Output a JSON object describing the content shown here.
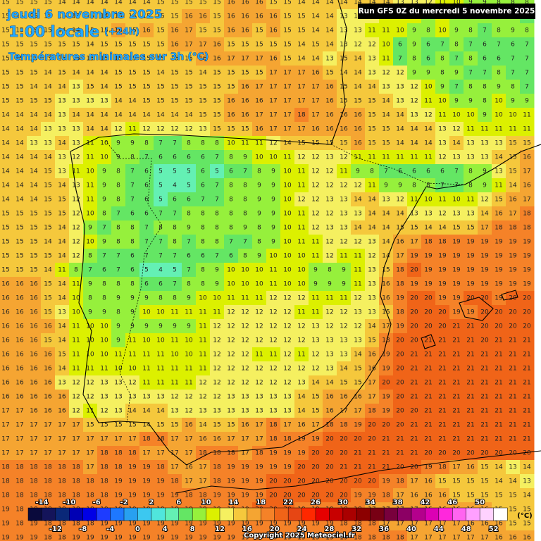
{
  "header": {
    "date": "jeudi 6 novembre 2025",
    "time": "1:00 locale",
    "lead": "(+24h)",
    "subtitle": "Températures minimales sur 3h (°C)",
    "run": "Run GFS 0Z du mercredi 5 novembre 2025"
  },
  "colorbar": {
    "unit": "(°C)",
    "labels": [
      -14,
      -12,
      -10,
      -8,
      -6,
      -4,
      -2,
      0,
      2,
      4,
      6,
      8,
      10,
      12,
      14,
      16,
      18,
      20,
      22,
      24,
      26,
      28,
      30,
      32,
      34,
      36,
      38,
      40,
      42,
      44,
      46,
      48,
      50,
      52
    ],
    "colors": [
      "#0a0a3c",
      "#14145a",
      "#0a2878",
      "#0000b4",
      "#0000e6",
      "#1e3cff",
      "#1e78ff",
      "#28a0f0",
      "#3cc8f0",
      "#50e6dc",
      "#64f0b4",
      "#64e664",
      "#96f03c",
      "#dcf000",
      "#f5f060",
      "#f5c83c",
      "#f5a532",
      "#f58228",
      "#f06418",
      "#e64614",
      "#ff2800",
      "#e60000",
      "#c80000",
      "#aa0000",
      "#8c0000",
      "#780014",
      "#78003c",
      "#8c0064",
      "#b4008c",
      "#dc00b4",
      "#ff28dc",
      "#ff64f0",
      "#ffa0ff",
      "#ffd2ff",
      "#ffffff"
    ]
  },
  "copyright": "Copyright 2025 Meteociel.fr",
  "grid": {
    "rows": [
      [
        15,
        15,
        15,
        15,
        14,
        14,
        14,
        14,
        14,
        14,
        14,
        15,
        15,
        15,
        15,
        15,
        16,
        16,
        16,
        15,
        15,
        14,
        14,
        14,
        14,
        14,
        14,
        14,
        13,
        13,
        12,
        11,
        10,
        9,
        9,
        8,
        8,
        8
      ],
      [
        15,
        15,
        15,
        15,
        15,
        15,
        15,
        14,
        15,
        15,
        15,
        15,
        15,
        16,
        16,
        15,
        16,
        16,
        16,
        16,
        15,
        15,
        14,
        14,
        13,
        13,
        12,
        11,
        11,
        10,
        9,
        10,
        8,
        8,
        9,
        8,
        8,
        7
      ],
      [
        15,
        15,
        15,
        15,
        14,
        14,
        15,
        15,
        16,
        15,
        16,
        15,
        16,
        17,
        15,
        15,
        16,
        16,
        15,
        16,
        15,
        15,
        14,
        14,
        13,
        13,
        11,
        11,
        10,
        9,
        8,
        10,
        9,
        8,
        7,
        8,
        9,
        8
      ],
      [
        15,
        15,
        15,
        15,
        15,
        15,
        14,
        15,
        15,
        15,
        15,
        15,
        16,
        17,
        17,
        16,
        15,
        15,
        15,
        15,
        15,
        14,
        15,
        14,
        13,
        12,
        12,
        10,
        6,
        9,
        6,
        7,
        8,
        7,
        6,
        7,
        6,
        7
      ],
      [
        15,
        15,
        15,
        15,
        15,
        15,
        15,
        15,
        15,
        15,
        15,
        15,
        15,
        15,
        16,
        16,
        17,
        17,
        17,
        16,
        15,
        14,
        14,
        13,
        15,
        14,
        13,
        11,
        7,
        8,
        6,
        8,
        7,
        8,
        6,
        6,
        7,
        7
      ],
      [
        15,
        15,
        15,
        14,
        15,
        14,
        14,
        14,
        15,
        15,
        15,
        14,
        15,
        15,
        14,
        15,
        15,
        15,
        15,
        17,
        17,
        17,
        16,
        15,
        14,
        14,
        13,
        12,
        12,
        9,
        9,
        8,
        9,
        7,
        7,
        8,
        7,
        7
      ],
      [
        15,
        15,
        14,
        14,
        14,
        13,
        15,
        14,
        15,
        15,
        15,
        15,
        15,
        15,
        15,
        15,
        15,
        16,
        17,
        17,
        17,
        17,
        17,
        16,
        15,
        14,
        14,
        13,
        13,
        12,
        10,
        9,
        7,
        8,
        8,
        9,
        8,
        7
      ],
      [
        15,
        15,
        15,
        15,
        13,
        13,
        13,
        13,
        14,
        14,
        15,
        15,
        15,
        15,
        15,
        15,
        16,
        16,
        16,
        17,
        17,
        17,
        17,
        16,
        15,
        15,
        15,
        14,
        13,
        12,
        11,
        10,
        9,
        9,
        8,
        10,
        9,
        9
      ],
      [
        14,
        14,
        14,
        14,
        13,
        14,
        14,
        14,
        14,
        14,
        14,
        14,
        14,
        14,
        15,
        15,
        16,
        16,
        17,
        17,
        17,
        18,
        17,
        16,
        16,
        16,
        15,
        14,
        14,
        13,
        12,
        11,
        10,
        10,
        9,
        10,
        10,
        11
      ],
      [
        14,
        14,
        14,
        13,
        13,
        13,
        14,
        14,
        12,
        11,
        12,
        12,
        12,
        12,
        13,
        15,
        15,
        15,
        16,
        17,
        17,
        17,
        16,
        16,
        16,
        16,
        15,
        15,
        14,
        14,
        14,
        13,
        12,
        11,
        11,
        11,
        11,
        11
      ],
      [
        14,
        14,
        13,
        13,
        14,
        13,
        11,
        10,
        9,
        9,
        8,
        7,
        7,
        8,
        8,
        8,
        10,
        11,
        11,
        12,
        14,
        15,
        15,
        15,
        15,
        16,
        15,
        15,
        14,
        14,
        14,
        13,
        14,
        13,
        13,
        13,
        15,
        15
      ],
      [
        14,
        14,
        14,
        14,
        13,
        12,
        11,
        10,
        9,
        8,
        7,
        6,
        6,
        6,
        6,
        7,
        8,
        9,
        10,
        10,
        11,
        12,
        12,
        13,
        12,
        11,
        11,
        11,
        11,
        11,
        11,
        12,
        13,
        13,
        13,
        14,
        15,
        16
      ],
      [
        14,
        14,
        14,
        15,
        13,
        11,
        10,
        9,
        8,
        7,
        6,
        5,
        5,
        5,
        6,
        5,
        6,
        7,
        8,
        9,
        10,
        11,
        12,
        12,
        11,
        9,
        8,
        7,
        6,
        6,
        6,
        6,
        7,
        8,
        9,
        13,
        15,
        17
      ],
      [
        14,
        14,
        14,
        15,
        14,
        13,
        11,
        9,
        8,
        7,
        6,
        5,
        4,
        5,
        6,
        7,
        8,
        8,
        9,
        9,
        10,
        11,
        12,
        12,
        12,
        12,
        11,
        9,
        9,
        8,
        8,
        7,
        7,
        8,
        9,
        11,
        14,
        16
      ],
      [
        14,
        14,
        14,
        15,
        15,
        12,
        11,
        9,
        8,
        7,
        6,
        5,
        6,
        6,
        7,
        7,
        8,
        8,
        9,
        9,
        10,
        12,
        12,
        13,
        13,
        14,
        14,
        13,
        12,
        11,
        10,
        11,
        10,
        11,
        12,
        15,
        16,
        17
      ],
      [
        15,
        15,
        15,
        15,
        15,
        12,
        10,
        8,
        7,
        6,
        6,
        7,
        7,
        8,
        8,
        8,
        8,
        8,
        9,
        9,
        10,
        11,
        12,
        12,
        13,
        13,
        14,
        14,
        14,
        13,
        13,
        12,
        13,
        13,
        14,
        16,
        17,
        18
      ],
      [
        15,
        15,
        15,
        15,
        14,
        12,
        9,
        7,
        8,
        8,
        7,
        8,
        8,
        9,
        8,
        8,
        8,
        9,
        8,
        9,
        10,
        11,
        12,
        13,
        13,
        14,
        14,
        14,
        15,
        15,
        14,
        14,
        15,
        15,
        17,
        18,
        18,
        18
      ],
      [
        15,
        15,
        15,
        14,
        14,
        12,
        10,
        9,
        8,
        8,
        7,
        7,
        8,
        7,
        8,
        8,
        7,
        7,
        8,
        9,
        10,
        11,
        11,
        12,
        12,
        12,
        13,
        14,
        16,
        17,
        18,
        18,
        19,
        19,
        19,
        19,
        19,
        19
      ],
      [
        15,
        15,
        15,
        15,
        14,
        12,
        8,
        7,
        7,
        6,
        7,
        7,
        7,
        6,
        6,
        7,
        6,
        8,
        9,
        10,
        10,
        10,
        11,
        12,
        11,
        11,
        12,
        14,
        17,
        19,
        19,
        19,
        19,
        19,
        19,
        19,
        19,
        19
      ],
      [
        15,
        15,
        15,
        14,
        11,
        8,
        7,
        6,
        7,
        6,
        5,
        4,
        5,
        7,
        8,
        9,
        10,
        10,
        10,
        11,
        10,
        10,
        9,
        8,
        9,
        11,
        13,
        15,
        18,
        20,
        19,
        19,
        19,
        19,
        19,
        19,
        19,
        19
      ],
      [
        16,
        16,
        16,
        15,
        14,
        11,
        9,
        8,
        8,
        8,
        6,
        6,
        7,
        8,
        8,
        9,
        10,
        10,
        10,
        11,
        10,
        10,
        9,
        9,
        9,
        11,
        13,
        16,
        18,
        19,
        19,
        19,
        19,
        19,
        19,
        19,
        19,
        19
      ],
      [
        16,
        16,
        16,
        15,
        14,
        10,
        8,
        8,
        9,
        9,
        9,
        8,
        8,
        9,
        10,
        10,
        11,
        11,
        11,
        12,
        12,
        12,
        11,
        11,
        11,
        12,
        13,
        16,
        19,
        20,
        20,
        19,
        19,
        20,
        20,
        19,
        20,
        20
      ],
      [
        16,
        16,
        16,
        15,
        13,
        10,
        9,
        9,
        8,
        9,
        10,
        10,
        11,
        11,
        11,
        11,
        12,
        12,
        12,
        12,
        12,
        11,
        11,
        12,
        12,
        13,
        13,
        15,
        18,
        20,
        20,
        20,
        19,
        19,
        20,
        20,
        20,
        20
      ],
      [
        16,
        16,
        16,
        16,
        14,
        11,
        10,
        10,
        9,
        9,
        9,
        9,
        9,
        9,
        11,
        12,
        12,
        12,
        12,
        12,
        12,
        12,
        13,
        12,
        12,
        12,
        14,
        17,
        19,
        20,
        20,
        20,
        21,
        21,
        20,
        20,
        20,
        20
      ],
      [
        16,
        16,
        16,
        15,
        14,
        11,
        10,
        10,
        9,
        11,
        10,
        10,
        11,
        10,
        11,
        12,
        12,
        12,
        12,
        12,
        12,
        12,
        13,
        13,
        13,
        13,
        15,
        18,
        20,
        20,
        21,
        21,
        21,
        21,
        20,
        21,
        21,
        21
      ],
      [
        16,
        16,
        16,
        16,
        15,
        11,
        10,
        10,
        11,
        11,
        11,
        11,
        10,
        10,
        11,
        12,
        12,
        12,
        11,
        11,
        12,
        11,
        12,
        13,
        13,
        14,
        16,
        19,
        20,
        21,
        21,
        21,
        21,
        21,
        21,
        21,
        21,
        21
      ],
      [
        16,
        16,
        16,
        16,
        14,
        11,
        11,
        11,
        10,
        10,
        11,
        11,
        11,
        11,
        11,
        12,
        12,
        12,
        12,
        12,
        12,
        12,
        12,
        13,
        14,
        15,
        16,
        19,
        20,
        21,
        21,
        21,
        21,
        21,
        21,
        21,
        21,
        21
      ],
      [
        16,
        16,
        16,
        16,
        13,
        12,
        12,
        13,
        13,
        12,
        11,
        11,
        11,
        11,
        12,
        12,
        12,
        12,
        12,
        12,
        12,
        13,
        14,
        14,
        15,
        15,
        17,
        20,
        20,
        21,
        21,
        21,
        21,
        21,
        21,
        21,
        21,
        21
      ],
      [
        16,
        16,
        16,
        16,
        16,
        12,
        12,
        13,
        13,
        13,
        13,
        13,
        12,
        12,
        12,
        12,
        13,
        13,
        13,
        13,
        13,
        14,
        15,
        16,
        16,
        16,
        17,
        19,
        20,
        21,
        21,
        21,
        21,
        21,
        21,
        21,
        21,
        21
      ],
      [
        17,
        17,
        16,
        16,
        16,
        12,
        11,
        12,
        13,
        14,
        14,
        14,
        13,
        12,
        13,
        13,
        13,
        13,
        13,
        13,
        13,
        14,
        15,
        16,
        17,
        17,
        18,
        19,
        20,
        20,
        21,
        21,
        21,
        21,
        21,
        21,
        21,
        21
      ],
      [
        17,
        17,
        17,
        17,
        17,
        17,
        15,
        15,
        15,
        15,
        14,
        15,
        15,
        16,
        14,
        15,
        15,
        16,
        17,
        18,
        17,
        16,
        17,
        18,
        18,
        19,
        20,
        20,
        20,
        21,
        21,
        21,
        21,
        21,
        21,
        21,
        21,
        21
      ],
      [
        17,
        17,
        17,
        17,
        17,
        17,
        17,
        17,
        17,
        17,
        18,
        18,
        17,
        17,
        16,
        16,
        17,
        17,
        17,
        18,
        18,
        19,
        19,
        20,
        20,
        20,
        20,
        21,
        21,
        21,
        21,
        21,
        21,
        21,
        21,
        21,
        21,
        21
      ],
      [
        17,
        17,
        17,
        17,
        17,
        17,
        17,
        18,
        18,
        18,
        17,
        17,
        17,
        17,
        18,
        18,
        18,
        17,
        18,
        19,
        19,
        19,
        20,
        20,
        20,
        21,
        21,
        21,
        21,
        21,
        20,
        20,
        20,
        20,
        20,
        20,
        20,
        20
      ],
      [
        18,
        18,
        18,
        18,
        18,
        18,
        17,
        18,
        18,
        19,
        19,
        18,
        17,
        16,
        17,
        18,
        19,
        19,
        19,
        19,
        19,
        20,
        20,
        20,
        21,
        21,
        21,
        21,
        20,
        20,
        19,
        18,
        17,
        16,
        15,
        14,
        13,
        14
      ],
      [
        18,
        18,
        18,
        18,
        18,
        18,
        18,
        18,
        19,
        19,
        19,
        19,
        18,
        17,
        17,
        18,
        19,
        19,
        19,
        20,
        20,
        20,
        20,
        20,
        20,
        20,
        20,
        19,
        18,
        17,
        16,
        15,
        15,
        15,
        15,
        14,
        14,
        13
      ],
      [
        18,
        18,
        18,
        18,
        18,
        18,
        18,
        18,
        19,
        19,
        19,
        19,
        19,
        18,
        18,
        19,
        19,
        19,
        19,
        20,
        20,
        20,
        20,
        20,
        20,
        19,
        19,
        18,
        17,
        16,
        16,
        16,
        15,
        15,
        15,
        15,
        15,
        14
      ],
      [
        19,
        18,
        18,
        18,
        18,
        18,
        18,
        19,
        19,
        19,
        19,
        19,
        19,
        19,
        19,
        19,
        19,
        19,
        20,
        20,
        20,
        19,
        19,
        19,
        18,
        18,
        17,
        17,
        17,
        17,
        16,
        16,
        16,
        16,
        16,
        15,
        15,
        15
      ],
      [
        19,
        18,
        19,
        18,
        18,
        18,
        18,
        19,
        19,
        19,
        19,
        19,
        19,
        19,
        19,
        19,
        19,
        19,
        19,
        19,
        19,
        19,
        19,
        19,
        18,
        18,
        18,
        17,
        17,
        17,
        17,
        17,
        17,
        16,
        16,
        16,
        15,
        15
      ],
      [
        19,
        19,
        19,
        18,
        18,
        19,
        19,
        19,
        19,
        19,
        19,
        19,
        19,
        19,
        19,
        19,
        19,
        19,
        19,
        19,
        19,
        19,
        19,
        19,
        19,
        18,
        18,
        18,
        18,
        17,
        17,
        17,
        17,
        17,
        17,
        16,
        16,
        16
      ]
    ]
  }
}
